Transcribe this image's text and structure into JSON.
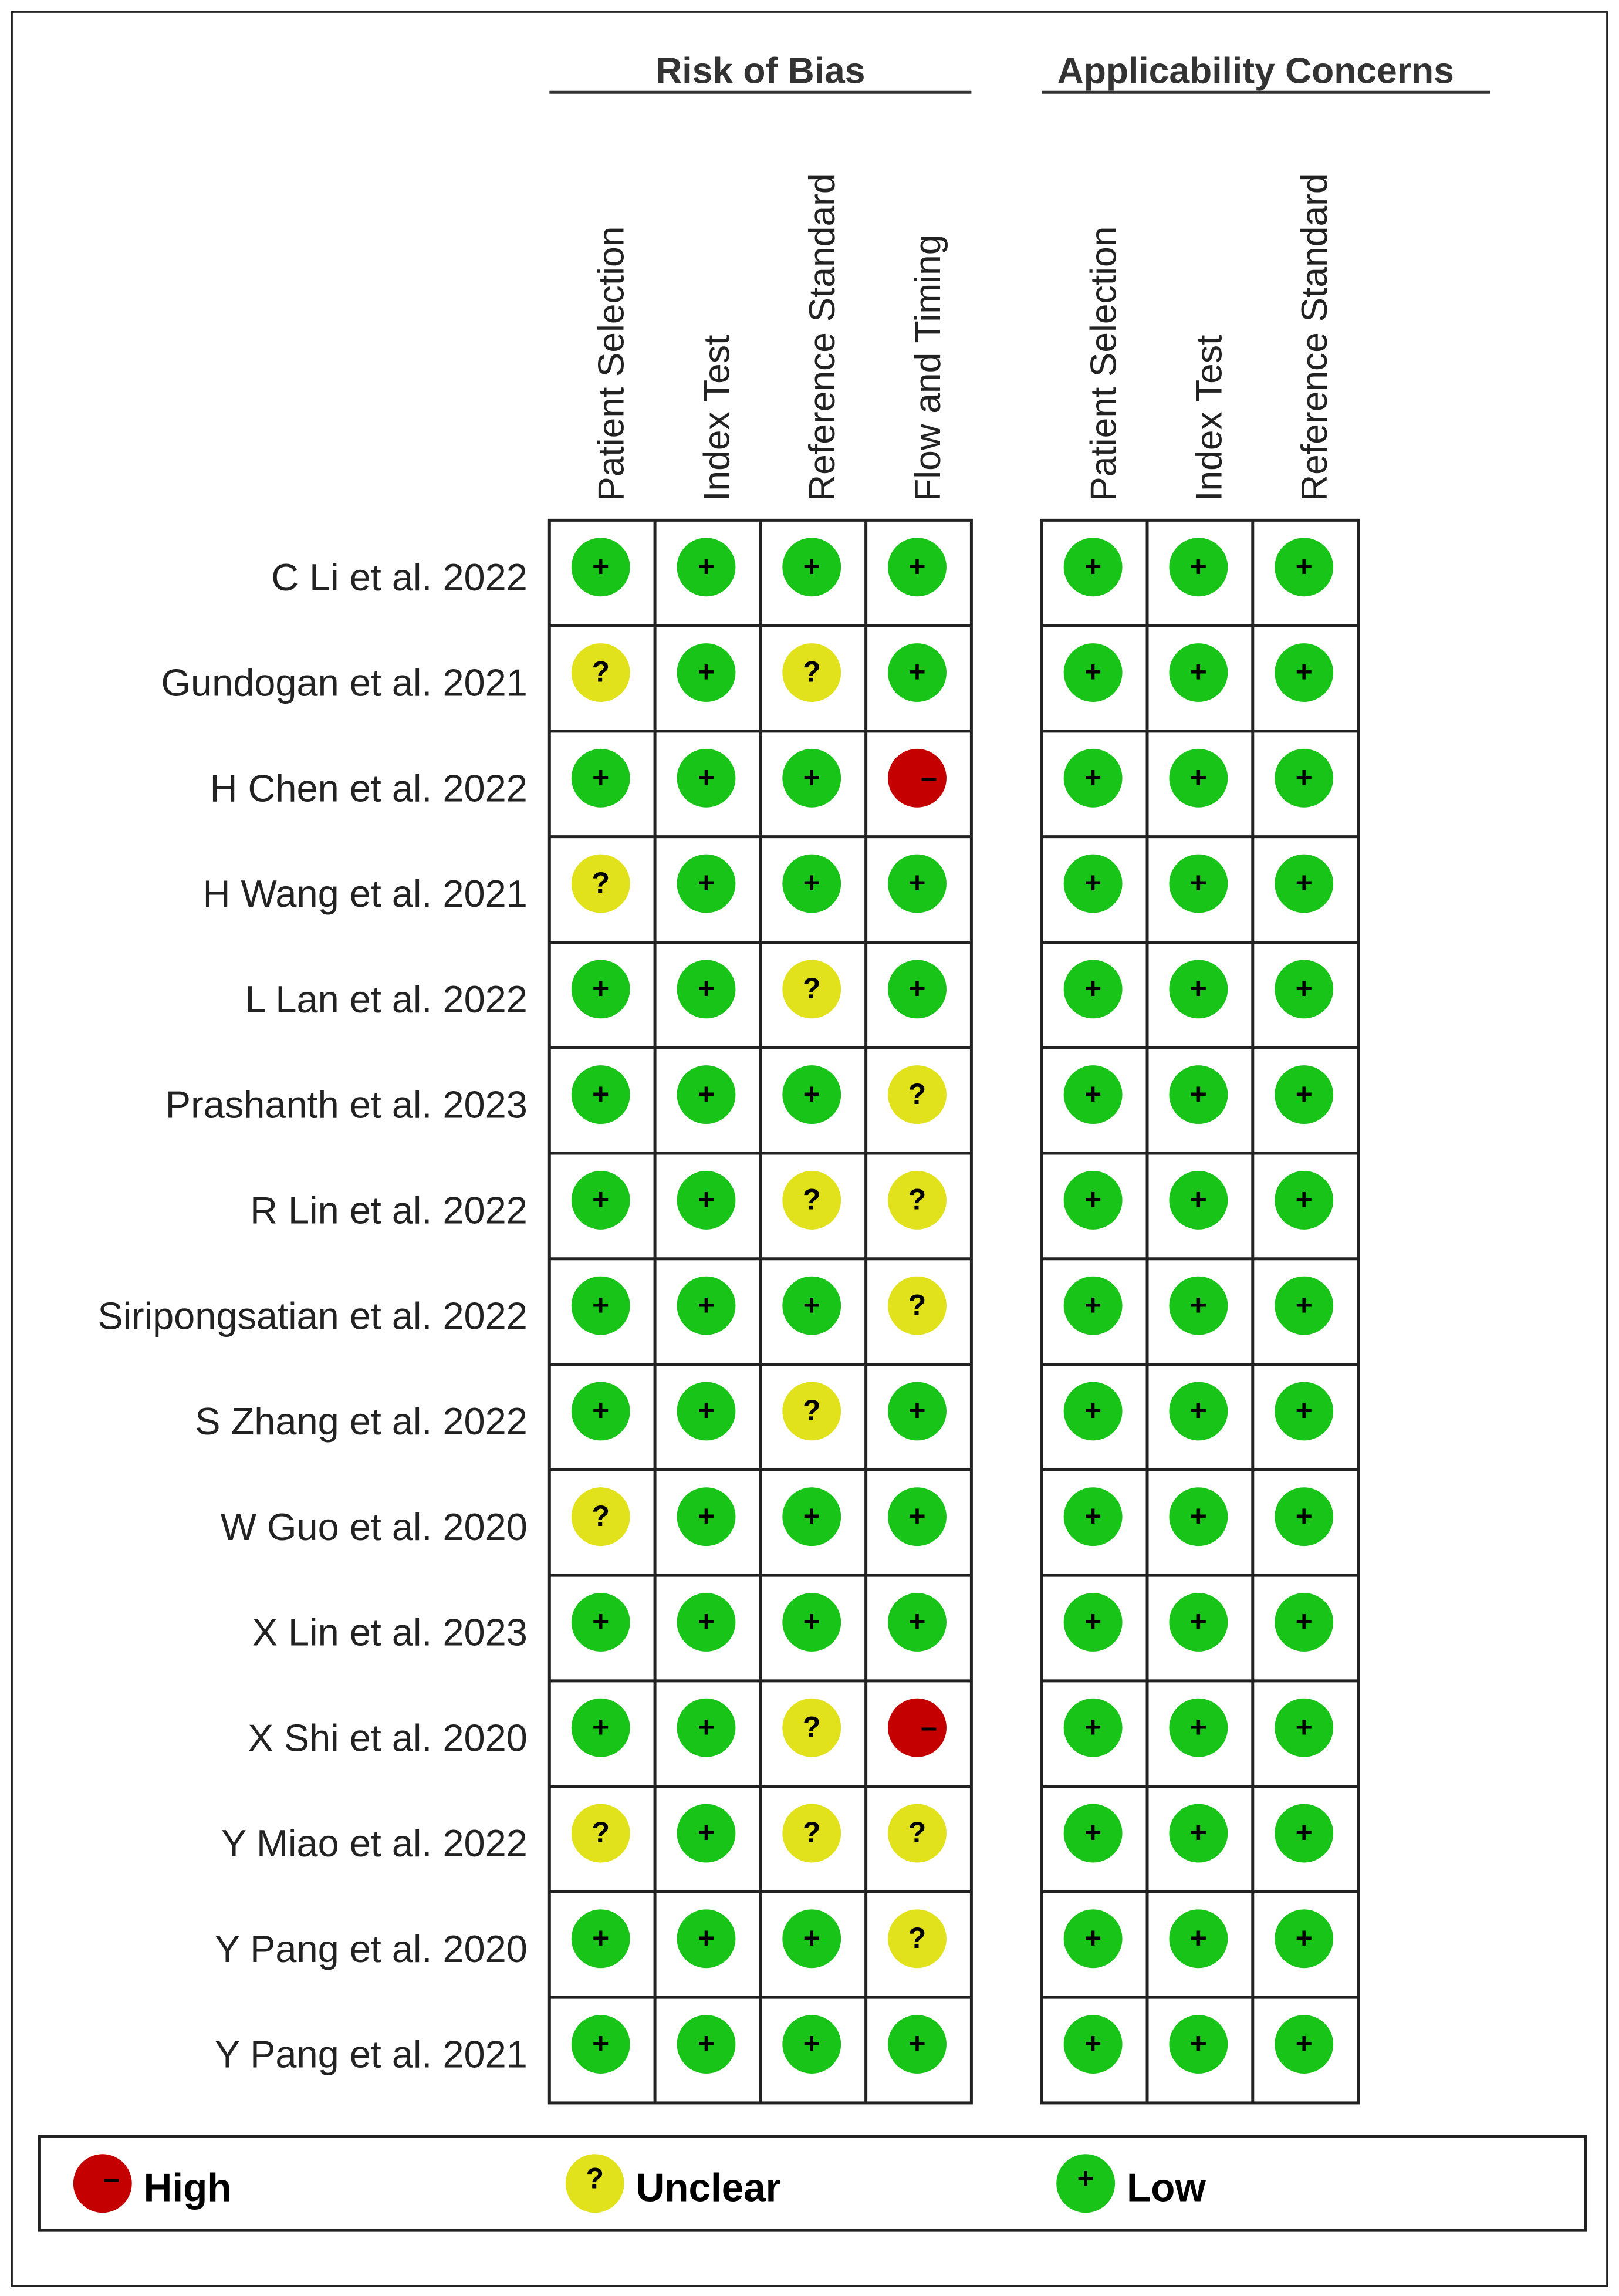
{
  "header": {
    "groups": [
      {
        "title": "Risk of Bias",
        "columns": [
          "Patient Selection",
          "Index Test",
          "Reference Standard",
          "Flow and Timing"
        ]
      },
      {
        "title": "Applicability Concerns",
        "columns": [
          "Patient Selection",
          "Index Test",
          "Reference Standard"
        ]
      }
    ]
  },
  "rows": [
    {
      "study": "C Li et al. 2022",
      "judgments": [
        [
          "+",
          "+",
          "+",
          "+"
        ],
        [
          "+",
          "+",
          "+"
        ]
      ]
    },
    {
      "study": "Gundogan et al. 2021",
      "judgments": [
        [
          "?",
          "+",
          "?",
          "+"
        ],
        [
          "+",
          "+",
          "+"
        ]
      ]
    },
    {
      "study": "H Chen et al. 2022",
      "judgments": [
        [
          "+",
          "+",
          "+",
          "–"
        ],
        [
          "+",
          "+",
          "+"
        ]
      ]
    },
    {
      "study": "H Wang et al. 2021",
      "judgments": [
        [
          "?",
          "+",
          "+",
          "+"
        ],
        [
          "+",
          "+",
          "+"
        ]
      ]
    },
    {
      "study": "L Lan et al. 2022",
      "judgments": [
        [
          "+",
          "+",
          "?",
          "+"
        ],
        [
          "+",
          "+",
          "+"
        ]
      ]
    },
    {
      "study": "Prashanth et al. 2023",
      "judgments": [
        [
          "+",
          "+",
          "+",
          "?"
        ],
        [
          "+",
          "+",
          "+"
        ]
      ]
    },
    {
      "study": "R Lin et al. 2022",
      "judgments": [
        [
          "+",
          "+",
          "?",
          "?"
        ],
        [
          "+",
          "+",
          "+"
        ]
      ]
    },
    {
      "study": "Siripongsatian et al. 2022",
      "judgments": [
        [
          "+",
          "+",
          "+",
          "?"
        ],
        [
          "+",
          "+",
          "+"
        ]
      ]
    },
    {
      "study": "S Zhang et al. 2022",
      "judgments": [
        [
          "+",
          "+",
          "?",
          "+"
        ],
        [
          "+",
          "+",
          "+"
        ]
      ]
    },
    {
      "study": "W Guo et al. 2020",
      "judgments": [
        [
          "?",
          "+",
          "+",
          "+"
        ],
        [
          "+",
          "+",
          "+"
        ]
      ]
    },
    {
      "study": "X Lin et al. 2023",
      "judgments": [
        [
          "+",
          "+",
          "+",
          "+"
        ],
        [
          "+",
          "+",
          "+"
        ]
      ]
    },
    {
      "study": "X Shi et al. 2020",
      "judgments": [
        [
          "+",
          "+",
          "?",
          "–"
        ],
        [
          "+",
          "+",
          "+"
        ]
      ]
    },
    {
      "study": "Y Miao et al. 2022",
      "judgments": [
        [
          "?",
          "+",
          "?",
          "?"
        ],
        [
          "+",
          "+",
          "+"
        ]
      ]
    },
    {
      "study": "Y Pang et al. 2020",
      "judgments": [
        [
          "+",
          "+",
          "+",
          "?"
        ],
        [
          "+",
          "+",
          "+"
        ]
      ]
    },
    {
      "study": "Y Pang et al. 2021",
      "judgments": [
        [
          "+",
          "+",
          "+",
          "+"
        ],
        [
          "+",
          "+",
          "+"
        ]
      ]
    }
  ],
  "legend": [
    {
      "symbol": "–",
      "label": "High",
      "color": "#c40000"
    },
    {
      "symbol": "?",
      "label": "Unclear",
      "color": "#e2e21c"
    },
    {
      "symbol": "+",
      "label": "Low",
      "color": "#18c418"
    }
  ]
}
